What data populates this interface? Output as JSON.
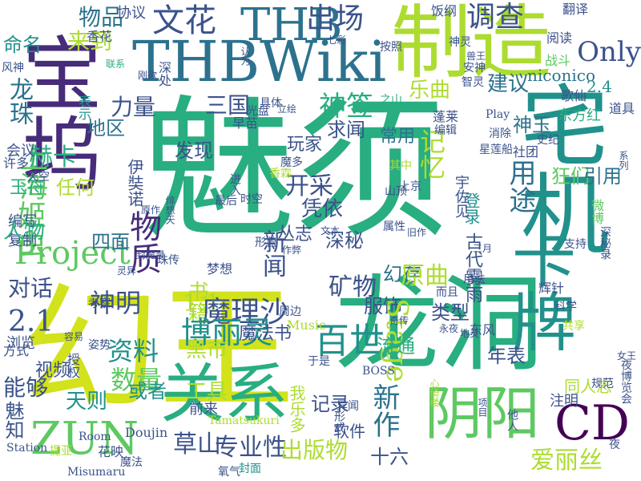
{
  "palette": {
    "purple": "#440154",
    "indigo": "#472c7a",
    "blue": "#3b528b",
    "steel": "#2c728e",
    "teal": "#21918c",
    "green": "#28ae80",
    "lime": "#5ec962",
    "yellowgreen": "#addc30",
    "yellow": "#d2e21b"
  },
  "words": [
    {
      "text": "魅须",
      "color": "#28ae80",
      "vertical": false
    },
    {
      "text": "幻王",
      "color": "#d2e21b",
      "vertical": false
    },
    {
      "text": "龙洞",
      "color": "#28ae80",
      "vertical": false
    },
    {
      "text": "制造",
      "color": "#addc30",
      "vertical": false
    },
    {
      "text": "THBWiki",
      "color": "#2c728e",
      "vertical": false
    },
    {
      "text": "宅机",
      "color": "#21918c",
      "vertical": true
    },
    {
      "text": "卡牌",
      "color": "#21918c",
      "vertical": true
    },
    {
      "text": "关系",
      "color": "#28ae80",
      "vertical": false
    },
    {
      "text": "阴阳",
      "color": "#5ec962",
      "vertical": false
    },
    {
      "text": "宝坞",
      "color": "#472c7a",
      "vertical": true
    },
    {
      "text": "THB",
      "color": "#2c728e",
      "vertical": false
    },
    {
      "text": "文花",
      "color": "#3b528b",
      "vertical": false
    },
    {
      "text": "出场",
      "color": "#3b528b",
      "vertical": false
    },
    {
      "text": "调查",
      "color": "#3b528b",
      "vertical": false
    },
    {
      "text": "Only",
      "color": "#3b528b",
      "vertical": false
    },
    {
      "text": "niconico",
      "color": "#2c728e",
      "vertical": false
    },
    {
      "text": "2.4",
      "color": "#21918c",
      "vertical": false
    },
    {
      "text": "物品",
      "color": "#2c728e",
      "vertical": false
    },
    {
      "text": "来到",
      "color": "#addc30",
      "vertical": false
    },
    {
      "text": "命名",
      "color": "#21918c",
      "vertical": false
    },
    {
      "text": "龙珠",
      "color": "#2c728e",
      "vertical": true
    },
    {
      "text": "上海",
      "color": "#5ec962",
      "vertical": true
    },
    {
      "text": "姬虫",
      "color": "#5ec962",
      "vertical": true
    },
    {
      "text": "赫卡",
      "color": "#28ae80",
      "vertical": false
    },
    {
      "text": "力量",
      "color": "#3b528b",
      "vertical": false
    },
    {
      "text": "三国",
      "color": "#3b528b",
      "vertical": false
    },
    {
      "text": "地区",
      "color": "#2c728e",
      "vertical": false
    },
    {
      "text": "神签",
      "color": "#28ae80",
      "vertical": false
    },
    {
      "text": "乐曲",
      "color": "#addc30",
      "vertical": false
    },
    {
      "text": "建议",
      "color": "#2c728e",
      "vertical": false
    },
    {
      "text": "求闻",
      "color": "#3b528b",
      "vertical": false
    },
    {
      "text": "发现",
      "color": "#3b528b",
      "vertical": false
    },
    {
      "text": "玩家",
      "color": "#3b528b",
      "vertical": false
    },
    {
      "text": "开采",
      "color": "#3b528b",
      "vertical": false
    },
    {
      "text": "记忆",
      "color": "#addc30",
      "vertical": true
    },
    {
      "text": "常用",
      "color": "#2c728e",
      "vertical": false
    },
    {
      "text": "用途",
      "color": "#2c728e",
      "vertical": true
    },
    {
      "text": "神玉",
      "color": "#2c728e",
      "vertical": false
    },
    {
      "text": "狂们",
      "color": "#5ec962",
      "vertical": false
    },
    {
      "text": "引用",
      "color": "#2c728e",
      "vertical": false
    },
    {
      "text": "任何",
      "color": "#addc30",
      "vertical": false
    },
    {
      "text": "伊奘诺",
      "color": "#3b528b",
      "vertical": true
    },
    {
      "text": "凭依",
      "color": "#3b528b",
      "vertical": false
    },
    {
      "text": "深秘",
      "color": "#3b528b",
      "vertical": false
    },
    {
      "text": "幻存",
      "color": "#2c728e",
      "vertical": false
    },
    {
      "text": "Project",
      "color": "#5ec962",
      "vertical": false
    },
    {
      "text": "物质",
      "color": "#472c7a",
      "vertical": true
    },
    {
      "text": "四面",
      "color": "#2c728e",
      "vertical": false
    },
    {
      "text": "对话",
      "color": "#3b528b",
      "vertical": false
    },
    {
      "text": "神明",
      "color": "#3b528b",
      "vertical": false
    },
    {
      "text": "书籍",
      "color": "#addc30",
      "vertical": true
    },
    {
      "text": "1.1",
      "color": "#addc30",
      "vertical": false
    },
    {
      "text": "魔理沙",
      "color": "#3b528b",
      "vertical": false
    },
    {
      "text": "矿物",
      "color": "#3b528b",
      "vertical": false
    },
    {
      "text": "原曲",
      "color": "#addc30",
      "vertical": false
    },
    {
      "text": "服饰",
      "color": "#3b528b",
      "vertical": false
    },
    {
      "text": "类型",
      "color": "#3b528b",
      "vertical": false
    },
    {
      "text": "2.1",
      "color": "#3b528b",
      "vertical": false
    },
    {
      "text": "博丽灵",
      "color": "#21918c",
      "vertical": false
    },
    {
      "text": "百世",
      "color": "#21918c",
      "vertical": false
    },
    {
      "text": "资料",
      "color": "#21918c",
      "vertical": false
    },
    {
      "text": "数量",
      "color": "#5ec962",
      "vertical": false
    },
    {
      "text": "黑市",
      "color": "#addc30",
      "vertical": false
    },
    {
      "text": "魔法书",
      "color": "#3b528b",
      "vertical": false
    },
    {
      "text": "工具",
      "color": "#addc30",
      "vertical": false
    },
    {
      "text": "年表",
      "color": "#3b528b",
      "vertical": false
    },
    {
      "text": "能够",
      "color": "#3b528b",
      "vertical": false
    },
    {
      "text": "天则",
      "color": "#21918c",
      "vertical": false
    },
    {
      "text": "ZUN",
      "color": "#5ec962",
      "vertical": false
    },
    {
      "text": "Stage",
      "color": "#addc30",
      "vertical": true
    },
    {
      "text": "新作",
      "color": "#2c728e",
      "vertical": true
    },
    {
      "text": "CD",
      "color": "#440154",
      "vertical": false
    },
    {
      "text": "草山",
      "color": "#3b528b",
      "vertical": false
    },
    {
      "text": "专业性",
      "color": "#3b528b",
      "vertical": false
    },
    {
      "text": "出版物",
      "color": "#addc30",
      "vertical": false
    },
    {
      "text": "十六",
      "color": "#3b528b",
      "vertical": false
    },
    {
      "text": "爱丽丝",
      "color": "#addc30",
      "vertical": false
    },
    {
      "text": "魅知",
      "color": "#3b528b",
      "vertical": true
    },
    {
      "text": "同人志",
      "color": "#addc30",
      "vertical": false
    },
    {
      "text": "注明",
      "color": "#3b528b",
      "vertical": false
    },
    {
      "text": "丛志",
      "color": "#3b528b",
      "vertical": false
    },
    {
      "text": "新闻",
      "color": "#3b528b",
      "vertical": true
    },
    {
      "text": "流通",
      "color": "#28ae80",
      "vertical": false
    },
    {
      "text": "记录",
      "color": "#3b528b",
      "vertical": false
    },
    {
      "text": "软件",
      "color": "#3b528b",
      "vertical": false
    },
    {
      "text": "复制",
      "color": "#3b528b",
      "vertical": false
    },
    {
      "text": "编写",
      "color": "#3b528b",
      "vertical": false
    },
    {
      "text": "人物",
      "color": "#28ae80",
      "vertical": false
    },
    {
      "text": "玉符",
      "color": "#28ae80",
      "vertical": false
    },
    {
      "text": "会议",
      "color": "#3b528b",
      "vertical": false
    },
    {
      "text": "浏览",
      "color": "#3b528b",
      "vertical": false
    },
    {
      "text": "视频",
      "color": "#3b528b",
      "vertical": false
    },
    {
      "text": "或者",
      "color": "#21918c",
      "vertical": false
    },
    {
      "text": "古代雾雨",
      "color": "#3b528b",
      "vertical": true
    },
    {
      "text": "登录",
      "color": "#21918c",
      "vertical": true
    },
    {
      "text": "香花",
      "color": "#3b528b",
      "vertical": false
    },
    {
      "text": "协议",
      "color": "#3b528b",
      "vertical": false
    },
    {
      "text": "饭纲",
      "color": "#3b528b",
      "vertical": false
    },
    {
      "text": "翻译",
      "color": "#3b528b",
      "vertical": false
    },
    {
      "text": "阅读",
      "color": "#3b528b",
      "vertical": false
    },
    {
      "text": "战斗",
      "color": "#5ec962",
      "vertical": false
    },
    {
      "text": "歌仙",
      "color": "#3b528b",
      "vertical": false
    },
    {
      "text": "道具",
      "color": "#3b528b",
      "vertical": false
    },
    {
      "text": "东方红",
      "color": "#28ae80",
      "vertical": false
    },
    {
      "text": "史纪",
      "color": "#3b528b",
      "vertical": false
    },
    {
      "text": "蓬莱",
      "color": "#3b528b",
      "vertical": false
    },
    {
      "text": "编辑",
      "color": "#3b528b",
      "vertical": false
    },
    {
      "text": "Play",
      "color": "#3b528b",
      "vertical": false
    },
    {
      "text": "消除",
      "color": "#3b528b",
      "vertical": false
    },
    {
      "text": "星莲船",
      "color": "#3b528b",
      "vertical": false
    },
    {
      "text": "社团",
      "color": "#3b528b",
      "vertical": false
    },
    {
      "text": "早苗",
      "color": "#3b528b",
      "vertical": false
    },
    {
      "text": "光盘",
      "color": "#3b528b",
      "vertical": false
    },
    {
      "text": "具体",
      "color": "#3b528b",
      "vertical": false
    },
    {
      "text": "之山",
      "color": "#28ae80",
      "vertical": false
    },
    {
      "text": "表示",
      "color": "#21918c",
      "vertical": true
    },
    {
      "text": "刚欲",
      "color": "#3b528b",
      "vertical": false
    },
    {
      "text": "深处",
      "color": "#3b528b",
      "vertical": true
    },
    {
      "text": "联系",
      "color": "#28ae80",
      "vertical": false
    },
    {
      "text": "风神",
      "color": "#3b528b",
      "vertical": false
    },
    {
      "text": "许多",
      "color": "#3b528b",
      "vertical": false
    },
    {
      "text": "天空",
      "color": "#3b528b",
      "vertical": false
    },
    {
      "text": "方式",
      "color": "#3b528b",
      "vertical": false
    },
    {
      "text": "Room",
      "color": "#3b528b",
      "vertical": false
    },
    {
      "text": "提亚",
      "color": "#addc30",
      "vertical": false
    },
    {
      "text": "Station",
      "color": "#3b528b",
      "vertical": false
    },
    {
      "text": "Doujin",
      "color": "#3b528b",
      "vertical": false
    },
    {
      "text": "前来",
      "color": "#3b528b",
      "vertical": false
    },
    {
      "text": "花映",
      "color": "#3b528b",
      "vertical": false
    },
    {
      "text": "魔法",
      "color": "#3b528b",
      "vertical": false
    },
    {
      "text": "Misumaru",
      "color": "#3b528b",
      "vertical": false
    },
    {
      "text": "Tamatsukuri",
      "color": "#addc30",
      "vertical": false
    },
    {
      "text": "封面",
      "color": "#21918c",
      "vertical": false
    },
    {
      "text": "氧气",
      "color": "#3b528b",
      "vertical": false
    },
    {
      "text": "于是",
      "color": "#3b528b",
      "vertical": false
    },
    {
      "text": "异闻",
      "color": "#3b528b",
      "vertical": false
    },
    {
      "text": "形式",
      "color": "#3b528b",
      "vertical": true
    },
    {
      "text": "BOSS",
      "color": "#3b528b",
      "vertical": false
    },
    {
      "text": "梦想",
      "color": "#3b528b",
      "vertical": false
    },
    {
      "text": "周边",
      "color": "#3b528b",
      "vertical": false
    },
    {
      "text": "Music",
      "color": "#addc30",
      "vertical": false
    },
    {
      "text": "奇传",
      "color": "#3b528b",
      "vertical": false
    },
    {
      "text": "永夜",
      "color": "#3b528b",
      "vertical": false
    },
    {
      "text": "科学",
      "color": "#3b528b",
      "vertical": false
    },
    {
      "text": "辉针",
      "color": "#3b528b",
      "vertical": false
    },
    {
      "text": "共享",
      "color": "#addc30",
      "vertical": false
    },
    {
      "text": "而且",
      "color": "#3b528b",
      "vertical": false
    },
    {
      "text": "用法",
      "color": "#3b528b",
      "vertical": false
    },
    {
      "text": "支持",
      "color": "#3b528b",
      "vertical": false
    },
    {
      "text": "容易",
      "color": "#3b528b",
      "vertical": false
    },
    {
      "text": "姿势",
      "color": "#3b528b",
      "vertical": false
    },
    {
      "text": "授权",
      "color": "#3b528b",
      "vertical": true
    },
    {
      "text": "考察",
      "color": "#3b528b",
      "vertical": false
    },
    {
      "text": "灵异",
      "color": "#3b528b",
      "vertical": false
    },
    {
      "text": "珠传",
      "color": "#3b528b",
      "vertical": false
    },
    {
      "text": "作弊",
      "color": "#3b528b",
      "vertical": false
    },
    {
      "text": "形兽",
      "color": "#3b528b",
      "vertical": false
    },
    {
      "text": "其中",
      "color": "#addc30",
      "vertical": false
    },
    {
      "text": "上京",
      "color": "#3b528b",
      "vertical": false
    },
    {
      "text": "最后",
      "color": "#3b528b",
      "vertical": false
    },
    {
      "text": "时空",
      "color": "#3b528b",
      "vertical": false
    },
    {
      "text": "属性",
      "color": "#3b528b",
      "vertical": false
    },
    {
      "text": "魔多",
      "color": "#3b528b",
      "vertical": false
    },
    {
      "text": "香霖",
      "color": "#addc30",
      "vertical": false
    },
    {
      "text": "立绘",
      "color": "#3b528b",
      "vertical": false
    },
    {
      "text": "按照",
      "color": "#3b528b",
      "vertical": false
    },
    {
      "text": "七彩",
      "color": "#3b528b",
      "vertical": false
    },
    {
      "text": "神灵",
      "color": "#3b528b",
      "vertical": false
    },
    {
      "text": "兽王",
      "color": "#3b528b",
      "vertical": false
    },
    {
      "text": "安神",
      "color": "#3b528b",
      "vertical": false
    },
    {
      "text": "智灵",
      "color": "#3b528b",
      "vertical": false
    },
    {
      "text": "认为",
      "color": "#3b528b",
      "vertical": true
    },
    {
      "text": "原作",
      "color": "#3b528b",
      "vertical": false
    },
    {
      "text": "系列",
      "color": "#3b528b",
      "vertical": true
    },
    {
      "text": "女王",
      "color": "#3b528b",
      "vertical": false
    },
    {
      "text": "夜",
      "color": "#3b528b",
      "vertical": false
    },
    {
      "text": "规范",
      "color": "#3b528b",
      "vertical": false
    },
    {
      "text": "项目",
      "color": "#3b528b",
      "vertical": true
    },
    {
      "text": "他人",
      "color": "#3b528b",
      "vertical": true
    },
    {
      "text": "心绮楼",
      "color": "#addc30",
      "vertical": true
    },
    {
      "text": "夜博览会",
      "color": "#3b528b",
      "vertical": true
    },
    {
      "text": "深秘录",
      "color": "#3b528b",
      "vertical": true
    },
    {
      "text": "微博",
      "color": "#5ec962",
      "vertical": true
    },
    {
      "text": "宇佐见",
      "color": "#3b528b",
      "vertical": true
    },
    {
      "text": "山顶",
      "color": "#3b528b",
      "vertical": false
    },
    {
      "text": "旧作",
      "color": "#3b528b",
      "vertical": false
    },
    {
      "text": "三月",
      "color": "#3b528b",
      "vertical": false
    },
    {
      "text": "文本",
      "color": "#3b528b",
      "vertical": false
    },
    {
      "text": "进入",
      "color": "#3b528b",
      "vertical": true
    },
    {
      "text": "绯想天",
      "color": "#3b528b",
      "vertical": true
    },
    {
      "text": "封魔录",
      "color": "#3b528b",
      "vertical": false
    },
    {
      "text": "我乐多",
      "color": "#addc30",
      "vertical": true
    },
    {
      "text": "东风",
      "color": "#3b528b",
      "vertical": false
    },
    {
      "text": "地灵",
      "color": "#3b528b",
      "vertical": false
    }
  ]
}
